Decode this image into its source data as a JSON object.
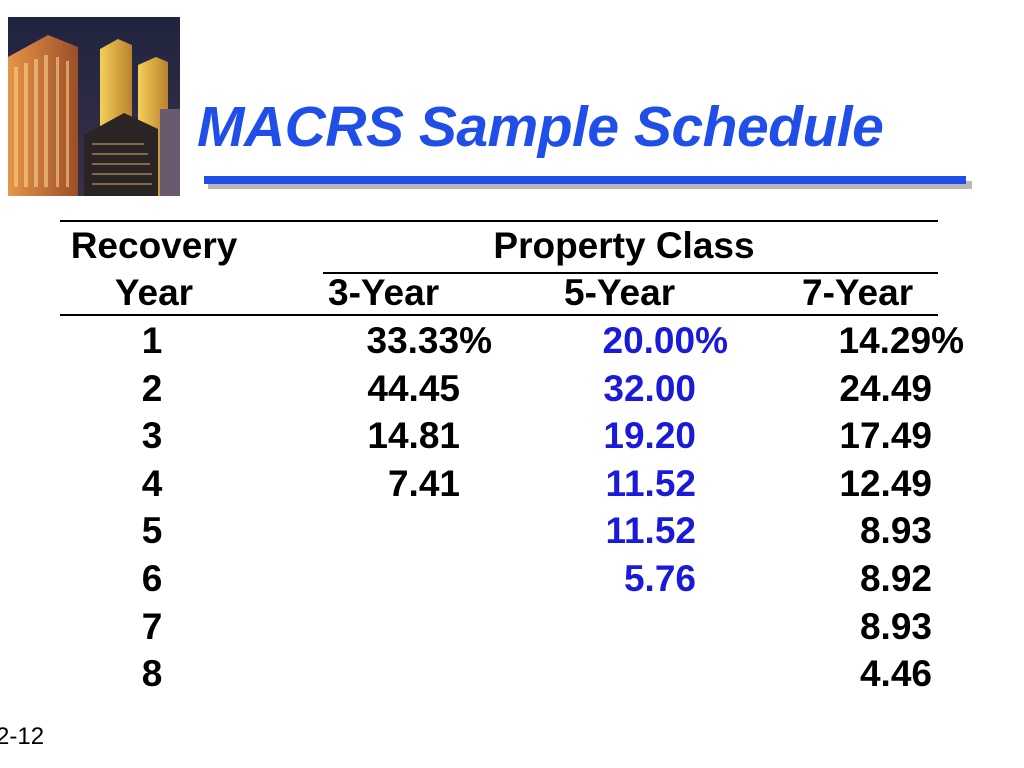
{
  "title": "MACRS Sample Schedule",
  "headers": {
    "recovery_line1": "Recovery",
    "recovery_line2": "Year",
    "property_class": "Property Class",
    "col_3yr": "3-Year",
    "col_5yr": "5-Year",
    "col_7yr": "7-Year"
  },
  "rows": [
    {
      "year": "1",
      "three": "33.33%",
      "five": "20.00%",
      "seven": "14.29%"
    },
    {
      "year": "2",
      "three": "44.45",
      "five": "32.00",
      "seven": "24.49"
    },
    {
      "year": "3",
      "three": "14.81",
      "five": "19.20",
      "seven": "17.49"
    },
    {
      "year": "4",
      "three": "7.41",
      "five": "11.52",
      "seven": "12.49"
    },
    {
      "year": "5",
      "three": "",
      "five": "11.52",
      "seven": "8.93"
    },
    {
      "year": "6",
      "three": "",
      "five": "5.76",
      "seven": "8.92"
    },
    {
      "year": "7",
      "three": "",
      "five": "",
      "seven": "8.93"
    },
    {
      "year": "8",
      "three": "",
      "five": "",
      "seven": "4.46"
    }
  ],
  "slide_number": "2-12",
  "colors": {
    "title": "#1f4ee8",
    "five_year_column": "#1a1ad9",
    "text": "#000000"
  },
  "image": {
    "icon": "city-skyscrapers-photo"
  }
}
